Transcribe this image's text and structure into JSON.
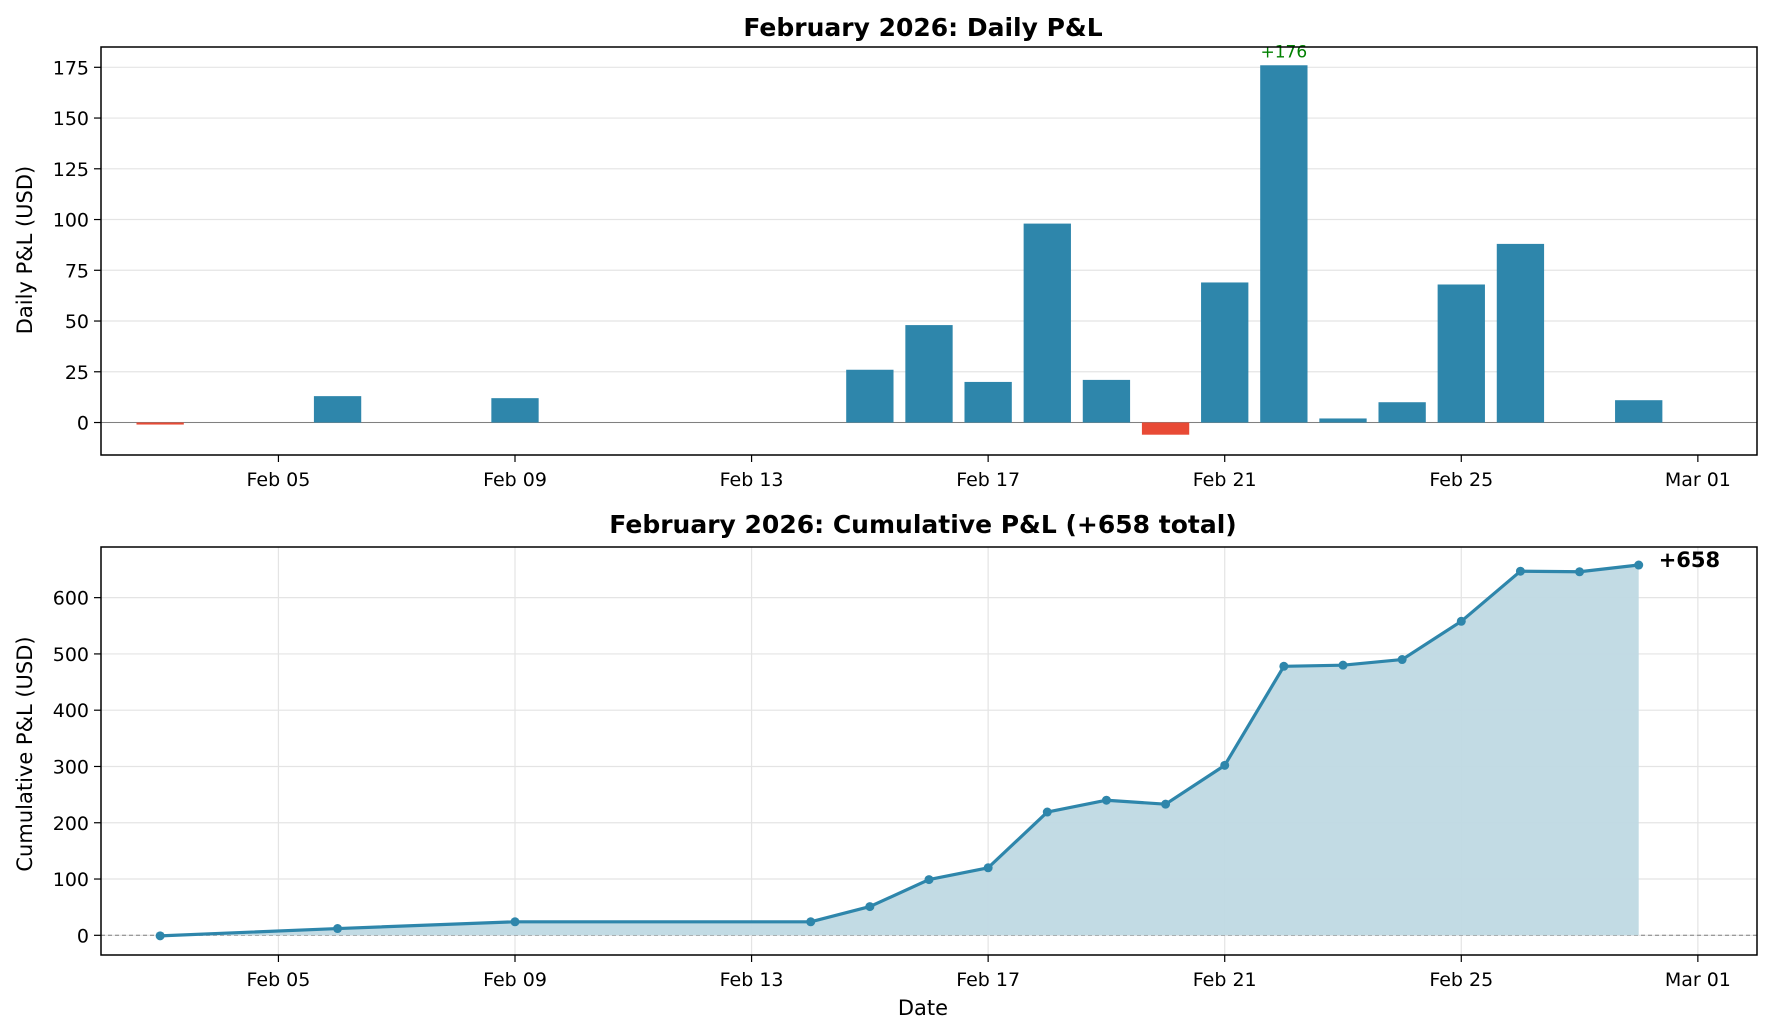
{
  "chart_data": [
    {
      "type": "bar",
      "title": "February 2026: Daily P&L",
      "xlabel": "",
      "ylabel": "Daily P&L (USD)",
      "x": [
        "2026-02-03",
        "2026-02-06",
        "2026-02-09",
        "2026-02-15",
        "2026-02-16",
        "2026-02-17",
        "2026-02-18",
        "2026-02-19",
        "2026-02-20",
        "2026-02-21",
        "2026-02-22",
        "2026-02-23",
        "2026-02-24",
        "2026-02-25",
        "2026-02-26",
        "2026-02-28"
      ],
      "values": [
        -1,
        13,
        12,
        26,
        48,
        20,
        98,
        21,
        -6,
        69,
        176,
        2,
        10,
        68,
        88,
        11
      ],
      "ylim": [
        -16,
        185
      ],
      "xlim": [
        "2026-02-02",
        "2026-03-02"
      ],
      "xticks": [
        "Feb 05",
        "Feb 09",
        "Feb 13",
        "Feb 17",
        "Feb 21",
        "Feb 25",
        "Mar 01"
      ],
      "yticks": [
        "0",
        "25",
        "50",
        "75",
        "100",
        "125",
        "150",
        "175"
      ],
      "colors": {
        "positive": "#2e86ab",
        "negative": "#e84a35"
      },
      "annotations": [
        {
          "x": "2026-02-22",
          "text": "+176",
          "color": "#008000"
        }
      ],
      "grid": "y"
    },
    {
      "type": "area",
      "title": "February 2026: Cumulative P&L (+658 total)",
      "xlabel": "Date",
      "ylabel": "Cumulative P&L (USD)",
      "x": [
        "2026-02-03",
        "2026-02-06",
        "2026-02-09",
        "2026-02-14",
        "2026-02-15",
        "2026-02-16",
        "2026-02-17",
        "2026-02-18",
        "2026-02-19",
        "2026-02-20",
        "2026-02-21",
        "2026-02-22",
        "2026-02-23",
        "2026-02-24",
        "2026-02-25",
        "2026-02-26",
        "2026-02-27",
        "2026-02-28"
      ],
      "values": [
        -1,
        12,
        24,
        24,
        51,
        99,
        120,
        219,
        240,
        233,
        302,
        478,
        480,
        490,
        558,
        647,
        646,
        658
      ],
      "ylim": [
        -35,
        690
      ],
      "xlim": [
        "2026-02-02",
        "2026-03-02"
      ],
      "xticks": [
        "Feb 05",
        "Feb 09",
        "Feb 13",
        "Feb 17",
        "Feb 21",
        "Feb 25",
        "Mar 01"
      ],
      "yticks": [
        "0",
        "100",
        "200",
        "300",
        "400",
        "500",
        "600"
      ],
      "colors": {
        "line": "#2e86ab",
        "fill": "#bfd9e3"
      },
      "annotations": [
        {
          "x": "2026-02-28",
          "text": "+658"
        }
      ],
      "grid": "both"
    }
  ]
}
